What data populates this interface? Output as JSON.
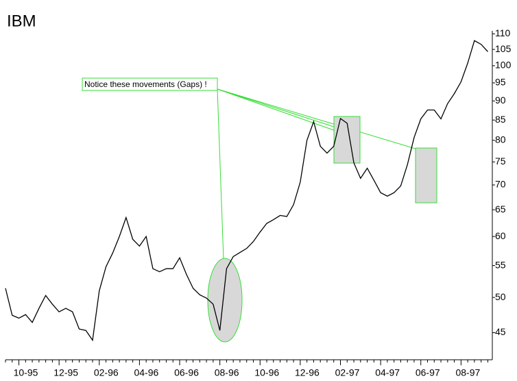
{
  "chart_data": {
    "type": "line",
    "title": "IBM",
    "annotation": "Notice these movements (Gaps) !",
    "categories": [
      null,
      null,
      "10-95",
      null,
      null,
      null,
      null,
      null,
      "12-95",
      null,
      null,
      null,
      null,
      null,
      "02-96",
      null,
      null,
      null,
      null,
      null,
      "04-96",
      null,
      null,
      null,
      null,
      null,
      "06-96",
      null,
      null,
      null,
      null,
      null,
      "08-96",
      null,
      null,
      null,
      null,
      null,
      "10-96",
      null,
      null,
      null,
      null,
      null,
      "12-96",
      null,
      null,
      null,
      null,
      null,
      "02-97",
      null,
      null,
      null,
      null,
      null,
      "04-97",
      null,
      null,
      null,
      null,
      null,
      "06-97",
      null,
      null,
      null,
      null,
      null,
      "08-97",
      null,
      null,
      null,
      null
    ],
    "series": [
      {
        "name": "IBM",
        "color": "#000000",
        "values": [
          51.4,
          47.4,
          47,
          47.5,
          46.4,
          48.4,
          50.3,
          49,
          47.9,
          48.4,
          47.9,
          45.5,
          45.3,
          44,
          51,
          54.8,
          57.1,
          60,
          63.5,
          59.5,
          58.3,
          60,
          54.5,
          54,
          54.5,
          54.5,
          56.3,
          53.6,
          51.4,
          50.4,
          49.9,
          49,
          45.3,
          54.5,
          56.5,
          57.2,
          57.9,
          59.1,
          60.8,
          62.4,
          63.1,
          63.9,
          63.7,
          66,
          70.6,
          80,
          84.6,
          78.6,
          77,
          78.6,
          85.4,
          84.2,
          74.8,
          71.4,
          73.6,
          71,
          68.4,
          67.7,
          68.4,
          69.8,
          74.4,
          80.7,
          85.3,
          87.6,
          87.6,
          85.3,
          89.3,
          92,
          95.3,
          100.8,
          107.8,
          106.6,
          104.3
        ]
      }
    ],
    "ylim": [
      41.5,
      111
    ],
    "log_scale": true,
    "yticks": [
      45,
      50,
      55,
      60,
      65,
      70,
      75,
      80,
      85,
      90,
      95,
      100,
      105,
      110
    ]
  }
}
